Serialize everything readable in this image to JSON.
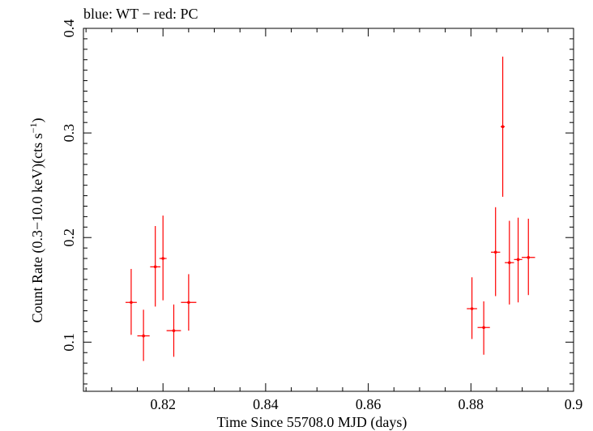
{
  "chart_data": {
    "type": "scatter",
    "title": "blue: WT − red: PC",
    "xlabel": "Time Since 55708.0 MJD (days)",
    "ylabel_main": "Count Rate (0.3−10.0 keV)(cts s",
    "ylabel_sup": "−1",
    "ylabel_close": ")",
    "xlim": [
      0.8045,
      0.9
    ],
    "ylim": [
      0.053,
      0.4
    ],
    "x_ticks": [
      {
        "value": 0.82,
        "label": "0.82"
      },
      {
        "value": 0.84,
        "label": "0.84"
      },
      {
        "value": 0.86,
        "label": "0.86"
      },
      {
        "value": 0.88,
        "label": "0.88"
      },
      {
        "value": 0.9,
        "label": "0.9"
      }
    ],
    "y_ticks": [
      {
        "value": 0.1,
        "label": "0.1"
      },
      {
        "value": 0.2,
        "label": "0.2"
      },
      {
        "value": 0.3,
        "label": "0.3"
      },
      {
        "value": 0.4,
        "label": "0.4"
      }
    ],
    "grid": false,
    "colors": {
      "PC": "#ff0000",
      "WT": "#0000ff"
    },
    "series": [
      {
        "name": "PC",
        "points": [
          {
            "x": 0.8138,
            "xerr": 0.0011,
            "y": 0.138,
            "ylo": 0.107,
            "yhi": 0.17
          },
          {
            "x": 0.8162,
            "xerr": 0.0012,
            "y": 0.106,
            "ylo": 0.082,
            "yhi": 0.131
          },
          {
            "x": 0.8185,
            "xerr": 0.001,
            "y": 0.172,
            "ylo": 0.134,
            "yhi": 0.211
          },
          {
            "x": 0.82,
            "xerr": 0.0007,
            "y": 0.18,
            "ylo": 0.14,
            "yhi": 0.221
          },
          {
            "x": 0.8221,
            "xerr": 0.0014,
            "y": 0.111,
            "ylo": 0.086,
            "yhi": 0.136
          },
          {
            "x": 0.825,
            "xerr": 0.0015,
            "y": 0.138,
            "ylo": 0.111,
            "yhi": 0.165
          },
          {
            "x": 0.8802,
            "xerr": 0.001,
            "y": 0.132,
            "ylo": 0.103,
            "yhi": 0.162
          },
          {
            "x": 0.8825,
            "xerr": 0.0012,
            "y": 0.114,
            "ylo": 0.088,
            "yhi": 0.139
          },
          {
            "x": 0.8848,
            "xerr": 0.0009,
            "y": 0.186,
            "ylo": 0.144,
            "yhi": 0.229
          },
          {
            "x": 0.8862,
            "xerr": 0.0004,
            "y": 0.306,
            "ylo": 0.239,
            "yhi": 0.373
          },
          {
            "x": 0.8875,
            "xerr": 0.0009,
            "y": 0.176,
            "ylo": 0.136,
            "yhi": 0.216
          },
          {
            "x": 0.8892,
            "xerr": 0.0008,
            "y": 0.179,
            "ylo": 0.138,
            "yhi": 0.219
          },
          {
            "x": 0.8912,
            "xerr": 0.0013,
            "y": 0.181,
            "ylo": 0.145,
            "yhi": 0.218
          }
        ]
      }
    ]
  }
}
